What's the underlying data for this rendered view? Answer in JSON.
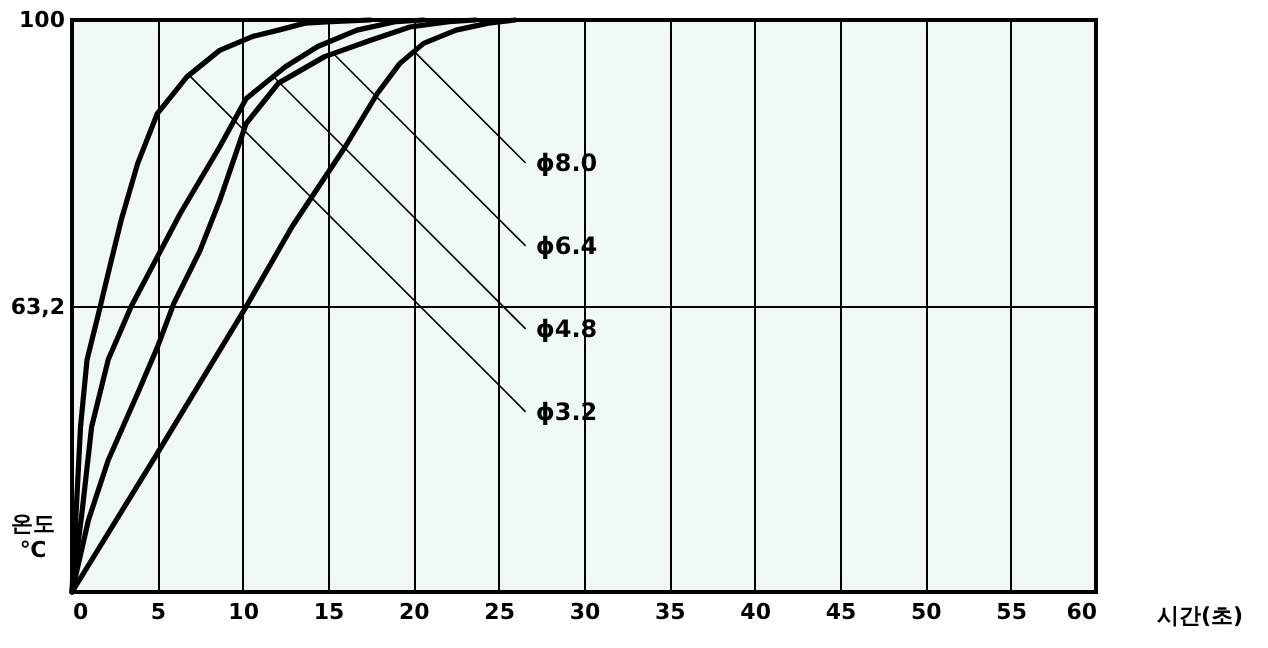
{
  "chart_data": {
    "type": "line",
    "xlabel": "시간(초)",
    "ylabel": "온도 ℃",
    "xlim": [
      0,
      60
    ],
    "xticks": [
      0,
      5,
      10,
      15,
      20,
      25,
      30,
      35,
      40,
      45,
      50,
      55,
      60
    ],
    "ylim": [
      26.6,
      100
    ],
    "yticks": [
      {
        "value": 63.2,
        "label": "63,2"
      },
      100
    ],
    "grid": true,
    "marker": "none",
    "line_style": "solid",
    "series": [
      {
        "name": "ϕ3.2",
        "color": "#000000",
        "x": [
          0,
          0.5,
          0.88,
          1.65,
          2.12,
          2.88,
          3.85,
          5,
          6.73,
          8.65,
          10.6,
          12.1,
          13.65,
          15.2,
          17.5
        ],
        "values": [
          26.6,
          47.8,
          56.4,
          63.2,
          67.5,
          74.3,
          81.6,
          88.0,
          92.7,
          96.1,
          97.9,
          98.7,
          99.6,
          99.8,
          100
        ]
      },
      {
        "name": "ϕ4.8",
        "color": "#000000",
        "x": [
          0,
          0.58,
          1.15,
          2.12,
          3.46,
          5,
          6.35,
          8.65,
          10.2,
          12.5,
          14.4,
          16.7,
          19,
          20.6
        ],
        "values": [
          26.6,
          36.7,
          47.8,
          56.4,
          63.2,
          69.6,
          75.2,
          83.7,
          89.9,
          94.0,
          96.6,
          98.7,
          99.8,
          100
        ]
      },
      {
        "name": "ϕ6.4",
        "color": "#000000",
        "x": [
          0,
          0.96,
          2.12,
          3.85,
          5,
          5.96,
          7.5,
          8.65,
          10.2,
          12.1,
          14.8,
          17.5,
          19.8,
          22.1,
          23.65
        ],
        "values": [
          26.6,
          35.8,
          43.5,
          52.1,
          58.0,
          63.6,
          70.4,
          76.8,
          86.7,
          91.9,
          95.3,
          97.4,
          99.1,
          99.8,
          100
        ]
      },
      {
        "name": "ϕ8.0",
        "color": "#000000",
        "x": [
          0,
          5,
          10.2,
          12.9,
          16,
          17.9,
          19.2,
          20.6,
          22.5,
          24.4,
          25.96
        ],
        "values": [
          26.6,
          44.4,
          63.2,
          73.5,
          83.7,
          90.6,
          94.4,
          97.0,
          98.7,
          99.6,
          100
        ]
      }
    ]
  }
}
